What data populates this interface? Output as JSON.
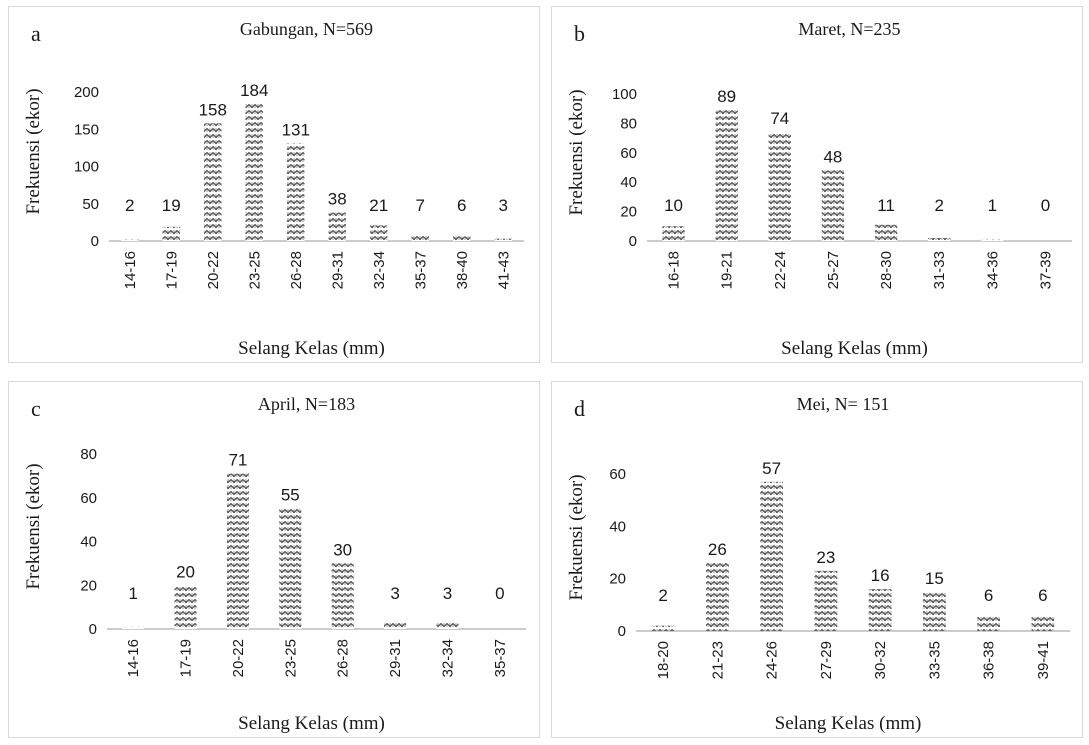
{
  "chart_data": [
    {
      "type": "bar",
      "panel_letter": "a",
      "title": "Gabungan, N=569",
      "xlabel": "Selang Kelas (mm)",
      "ylabel": "Frekuensi (ekor)",
      "categories": [
        "14-16",
        "17-19",
        "20-22",
        "23-25",
        "26-28",
        "29-31",
        "32-34",
        "35-37",
        "38-40",
        "41-43"
      ],
      "values": [
        2,
        19,
        158,
        184,
        131,
        38,
        21,
        7,
        6,
        3
      ],
      "ylim": [
        0,
        200
      ],
      "yticks": [
        0,
        50,
        100,
        150,
        200
      ],
      "grid": false,
      "bar_pattern": "zigzag hatch"
    },
    {
      "type": "bar",
      "panel_letter": "b",
      "title": "Maret, N=235",
      "xlabel": "Selang Kelas (mm)",
      "ylabel": "Frekuensi (ekor)",
      "categories": [
        "16-18",
        "19-21",
        "22-24",
        "25-27",
        "28-30",
        "31-33",
        "34-36",
        "37-39"
      ],
      "values": [
        10,
        89,
        74,
        48,
        11,
        2,
        1,
        0
      ],
      "ylim": [
        0,
        100
      ],
      "yticks": [
        0,
        20,
        40,
        60,
        80,
        100
      ],
      "grid": false,
      "bar_pattern": "zigzag hatch"
    },
    {
      "type": "bar",
      "panel_letter": "c",
      "title": "April, N=183",
      "xlabel": "Selang Kelas (mm)",
      "ylabel": "Frekuensi (ekor)",
      "categories": [
        "14-16",
        "17-19",
        "20-22",
        "23-25",
        "26-28",
        "29-31",
        "32-34",
        "35-37"
      ],
      "values": [
        1,
        20,
        71,
        55,
        30,
        3,
        3,
        0
      ],
      "ylim": [
        0,
        80
      ],
      "yticks": [
        0,
        20,
        40,
        60,
        80
      ],
      "grid": false,
      "bar_pattern": "zigzag hatch"
    },
    {
      "type": "bar",
      "panel_letter": "d",
      "title": "Mei, N= 151",
      "xlabel": "Selang Kelas (mm)",
      "ylabel": "Frekuensi (ekor)",
      "categories": [
        "18-20",
        "21-23",
        "24-26",
        "27-29",
        "30-32",
        "33-35",
        "36-38",
        "39-41"
      ],
      "values": [
        2,
        26,
        57,
        23,
        16,
        15,
        6,
        6
      ],
      "ylim": [
        0,
        60
      ],
      "yticks": [
        0,
        20,
        40,
        60
      ],
      "grid": false,
      "bar_pattern": "zigzag hatch"
    }
  ]
}
